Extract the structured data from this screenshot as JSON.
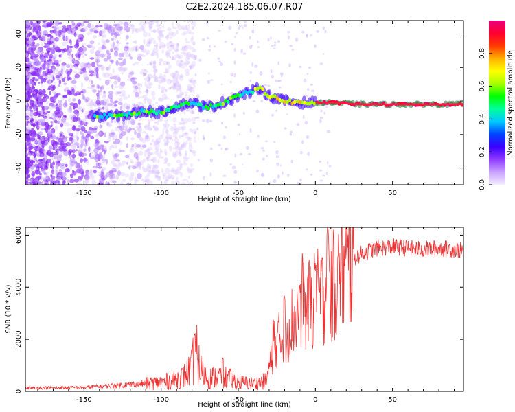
{
  "title": "C2E2.2024.185.06.07.R07",
  "chart_data": [
    {
      "type": "heatmap",
      "name": "spectrogram",
      "xlabel": "Height of straight line (km)",
      "ylabel": "Frequency (Hz)",
      "xlim": [
        -188,
        96
      ],
      "ylim": [
        -50,
        48
      ],
      "x_ticks": [
        -150,
        -100,
        -50,
        0,
        50
      ],
      "y_ticks": [
        -40,
        -20,
        0,
        20,
        40
      ],
      "colorbar": {
        "label": "Normalized spectral amplitude",
        "range": [
          0,
          1
        ],
        "ticks": [
          0.0,
          0.2,
          0.4,
          0.6,
          0.8
        ],
        "tick_labels": [
          "0.0",
          "0.2",
          "0.4",
          "0.6",
          "0.8"
        ],
        "colors": [
          "#f4ecff",
          "#c9a2ff",
          "#8f3cff",
          "#3a00ff",
          "#0044ff",
          "#00c8ff",
          "#00ff9a",
          "#00ff00",
          "#a8ff00",
          "#ffff00",
          "#ffb000",
          "#ff3a00",
          "#ff0030",
          "#e8007a"
        ]
      },
      "ridge": {
        "x": [
          -142,
          -130,
          -120,
          -110,
          -100,
          -90,
          -80,
          -70,
          -60,
          -50,
          -40,
          -36,
          -30,
          -20,
          -10,
          0,
          10,
          30,
          50,
          70,
          96
        ],
        "y": [
          -9,
          -9,
          -8,
          -6,
          -7,
          -3,
          -1,
          -4,
          -1,
          3,
          6,
          8,
          3,
          0,
          -1,
          -1,
          -1,
          -2,
          -2,
          -2,
          -2
        ]
      }
    },
    {
      "type": "line",
      "name": "snr",
      "xlabel": "Height of straight line (km)",
      "ylabel": "SNR (10 * v/v)",
      "xlim": [
        -188,
        96
      ],
      "ylim": [
        0,
        6300
      ],
      "x_ticks": [
        -150,
        -100,
        -50,
        0,
        50
      ],
      "y_ticks": [
        0,
        2000,
        4000,
        6000
      ],
      "color": "#ee3333",
      "envelope": {
        "x": [
          -188,
          -150,
          -130,
          -110,
          -100,
          -90,
          -85,
          -80,
          -78,
          -75,
          -70,
          -60,
          -50,
          -40,
          -32,
          -30,
          -25,
          -20,
          -15,
          -10,
          -5,
          0,
          5,
          8,
          10,
          15,
          20,
          25,
          30,
          40,
          50,
          60,
          70,
          80,
          90,
          96
        ],
        "y": [
          130,
          150,
          230,
          300,
          350,
          450,
          600,
          900,
          1700,
          900,
          500,
          600,
          350,
          300,
          400,
          900,
          1900,
          2200,
          2700,
          3000,
          3300,
          3500,
          3700,
          3900,
          4000,
          4300,
          4700,
          5100,
          5300,
          5500,
          5550,
          5500,
          5450,
          5500,
          5450,
          5400
        ]
      },
      "spikes": [
        {
          "x": -78,
          "y": 2250
        },
        {
          "x": -60,
          "y": 1300
        },
        {
          "x": -27,
          "y": 2800
        },
        {
          "x": -20,
          "y": 3700
        },
        {
          "x": -10,
          "y": 4100
        },
        {
          "x": -8,
          "y": 5300
        },
        {
          "x": 0,
          "y": 5000
        },
        {
          "x": 8,
          "y": 6300
        },
        {
          "x": 15,
          "y": 5500
        }
      ]
    }
  ]
}
